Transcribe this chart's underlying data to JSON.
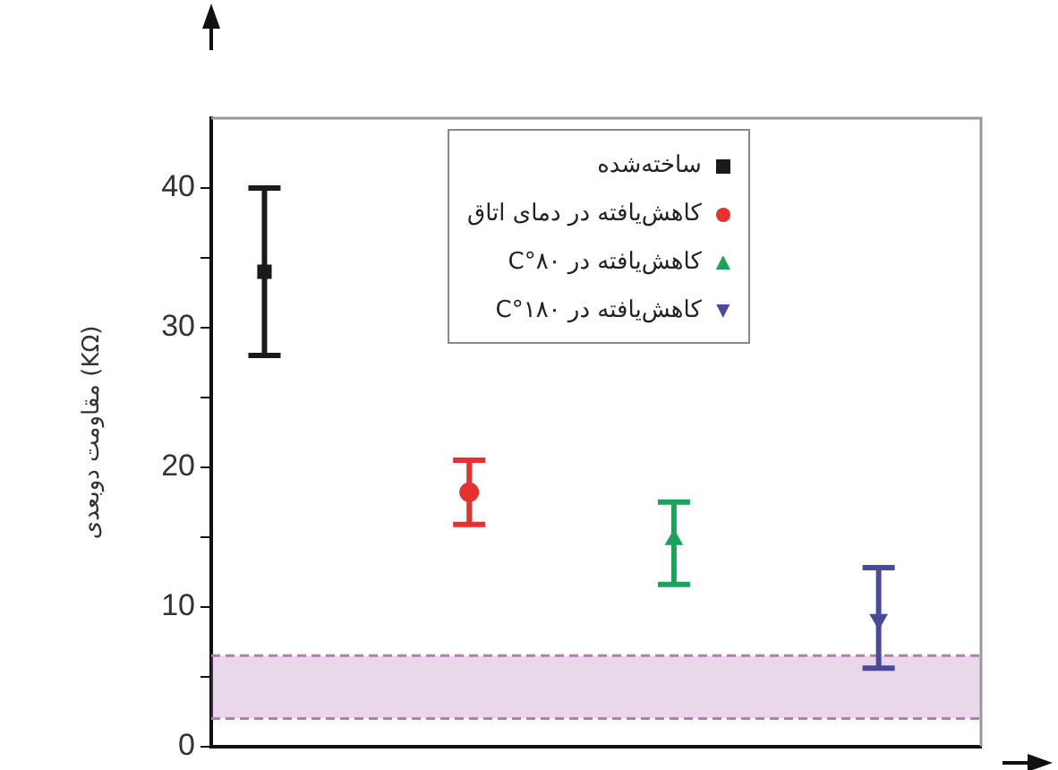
{
  "chart_data": {
    "type": "scatter",
    "ylabel": "مقاومت دوبعدی (KΩ)",
    "categories": [
      null,
      null,
      null,
      null
    ],
    "ylim": [
      0,
      45
    ],
    "yticks": [
      0,
      {
        "value": 5,
        "label": null
      },
      10,
      {
        "value": 15,
        "label": null
      },
      20,
      {
        "value": 25,
        "label": null
      },
      30,
      {
        "value": 35,
        "label": null
      },
      40
    ],
    "grid": false,
    "legend": "top right",
    "series": [
      {
        "name": "ساخته‌شده",
        "color": "#1a1a1a",
        "marker": "square",
        "values": [
          34,
          null,
          null,
          null
        ],
        "errors": [
          6,
          null,
          null,
          null
        ]
      },
      {
        "name": "کاهش‌یافته در دمای اتاق",
        "color": "#e8312f",
        "marker": "circle",
        "values": [
          null,
          18.2,
          null,
          null
        ],
        "errors": [
          null,
          [
            15.9,
            20.5
          ],
          null,
          null
        ]
      },
      {
        "name": "کاهش‌یافته در ۸۰°C",
        "color": "#1aa35a",
        "marker": "triangle",
        "values": [
          null,
          null,
          14.8,
          null
        ],
        "errors": [
          null,
          null,
          [
            11.6,
            17.5
          ],
          null
        ]
      },
      {
        "name": "کاهش‌یافته در ۱۸۰°C",
        "color": "#4b4a9a",
        "marker": "triangle-down",
        "values": [
          null,
          null,
          null,
          9.1
        ],
        "errors": [
          null,
          null,
          null,
          [
            5.6,
            12.8
          ]
        ]
      }
    ],
    "bands": [
      {
        "axis": "y",
        "from": 2,
        "to": 6.5,
        "color": "#b57ab8"
      }
    ],
    "ref_lines": [
      {
        "axis": "y",
        "value": 6.5,
        "color": "#b57ab8",
        "line_style": "dashed"
      },
      {
        "axis": "y",
        "value": 2,
        "color": "#b57ab8",
        "line_style": "dashed"
      }
    ]
  }
}
